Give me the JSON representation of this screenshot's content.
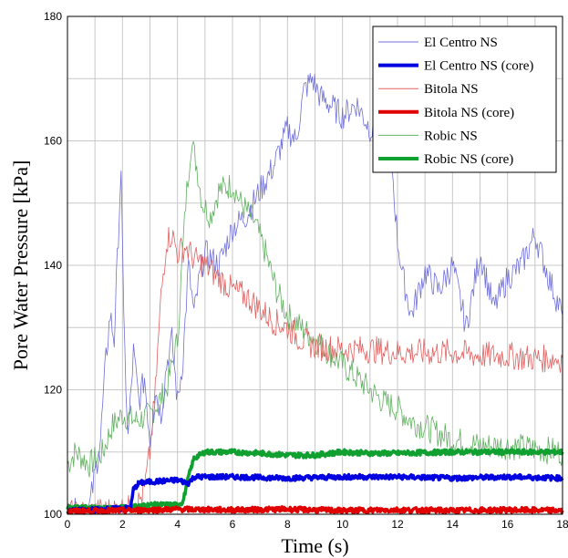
{
  "chart_data": {
    "type": "line",
    "xlabel": "Time (s)",
    "ylabel": "Pore Water Pressure [kPa]",
    "xlim": [
      0,
      18
    ],
    "ylim": [
      100,
      180
    ],
    "xticks": [
      "0",
      "2",
      "4",
      "6",
      "8",
      "10",
      "12",
      "14",
      "16",
      "18"
    ],
    "yticks": [
      "100",
      "120",
      "140",
      "160",
      "180"
    ],
    "grid": true,
    "legend_position": "top-right",
    "series": [
      {
        "name": "El Centro NS",
        "color": "#7070d8",
        "style": "thin",
        "x": [
          0,
          0.8,
          1.2,
          1.4,
          1.55,
          1.7,
          1.85,
          1.95,
          2.05,
          2.2,
          2.4,
          2.6,
          2.8,
          3.0,
          3.2,
          3.4,
          3.6,
          3.8,
          4.0,
          4.2,
          4.4,
          4.6,
          4.8,
          5.0,
          5.5,
          6.0,
          6.5,
          7.0,
          7.5,
          8.0,
          8.3,
          8.6,
          8.9,
          9.2,
          9.5,
          10.0,
          10.5,
          11.0,
          11.5,
          11.8,
          12.0,
          12.2,
          12.5,
          13.0,
          13.5,
          14.0,
          14.5,
          15.0,
          15.5,
          16.0,
          16.5,
          17.0,
          17.5,
          18.0
        ],
        "y": [
          100,
          101,
          112,
          125,
          132,
          128,
          145,
          156,
          130,
          112,
          126,
          118,
          122,
          112,
          120,
          116,
          124,
          128,
          118,
          125,
          140,
          132,
          138,
          142,
          140,
          146,
          148,
          152,
          156,
          162,
          160,
          168,
          170,
          167,
          166,
          164,
          166,
          162,
          160,
          156,
          144,
          138,
          132,
          139,
          136,
          140,
          130,
          142,
          133,
          138,
          140,
          145,
          138,
          132
        ]
      },
      {
        "name": "El Centro NS (core)",
        "color": "#0000e0",
        "style": "thick",
        "x": [
          0,
          2.3,
          2.4,
          2.6,
          3.0,
          4.0,
          4.4,
          4.6,
          6.0,
          8.0,
          10.0,
          12.0,
          14.0,
          16.0,
          18.0
        ],
        "y": [
          100.5,
          101,
          104,
          105,
          105.2,
          105.5,
          105,
          106,
          106,
          105.8,
          106,
          106,
          105.8,
          106,
          105.8
        ]
      },
      {
        "name": "Bitola NS",
        "color": "#e06060",
        "style": "thin",
        "x": [
          0,
          2.5,
          2.8,
          3.0,
          3.2,
          3.4,
          3.6,
          3.8,
          4.0,
          4.3,
          4.6,
          5.0,
          5.5,
          6.0,
          6.5,
          7.0,
          7.5,
          8.0,
          8.5,
          9.0,
          10.0,
          11.0,
          12.0,
          13.0,
          14.0,
          15.0,
          16.0,
          17.0,
          18.0
        ],
        "y": [
          100,
          101,
          104,
          110,
          120,
          135,
          144,
          145,
          142,
          143,
          141,
          140,
          138,
          136,
          135,
          133,
          131,
          130,
          128,
          127,
          126.5,
          126.5,
          126,
          126,
          126,
          125.5,
          125.5,
          125,
          125
        ]
      },
      {
        "name": "Bitola NS (core)",
        "color": "#e00000",
        "style": "thick",
        "x": [
          0,
          2,
          4,
          6,
          8,
          10,
          12,
          14,
          16,
          18
        ],
        "y": [
          100.5,
          100.6,
          100.8,
          100.7,
          100.8,
          100.6,
          100.7,
          100.6,
          100.7,
          100.6
        ]
      },
      {
        "name": "Robic NS",
        "color": "#60b060",
        "style": "thin",
        "x": [
          0,
          0.3,
          0.8,
          1.3,
          1.6,
          2.0,
          2.5,
          3.0,
          3.3,
          3.6,
          4.0,
          4.3,
          4.5,
          4.7,
          4.9,
          5.2,
          5.5,
          6.0,
          6.3,
          6.8,
          7.2,
          7.6,
          8.0,
          8.5,
          9.0,
          9.5,
          10.0,
          10.5,
          11.0,
          11.5,
          12.0,
          12.5,
          13.0,
          13.5,
          14.0,
          15.0,
          16.0,
          17.0,
          18.0
        ],
        "y": [
          108,
          110,
          108,
          110,
          114,
          116,
          115,
          116,
          118,
          120,
          128,
          150,
          160,
          156,
          150,
          148,
          152,
          153,
          150,
          147,
          142,
          136,
          132,
          130,
          128,
          126,
          124,
          122,
          120,
          118,
          117,
          115,
          114,
          113,
          112,
          111,
          111,
          110.5,
          110
        ]
      },
      {
        "name": "Robic NS (core)",
        "color": "#10a030",
        "style": "thick",
        "x": [
          0,
          2,
          3,
          4.0,
          4.2,
          4.4,
          4.6,
          5.0,
          6.0,
          7.0,
          8.0,
          9.0,
          10.0,
          11.0,
          12.0,
          14.0,
          16.0,
          18.0
        ],
        "y": [
          101,
          101,
          101.5,
          101.5,
          102,
          106,
          109,
          110,
          110,
          109.8,
          109.5,
          109.5,
          110,
          109.8,
          109.8,
          110,
          110,
          110
        ]
      }
    ]
  }
}
